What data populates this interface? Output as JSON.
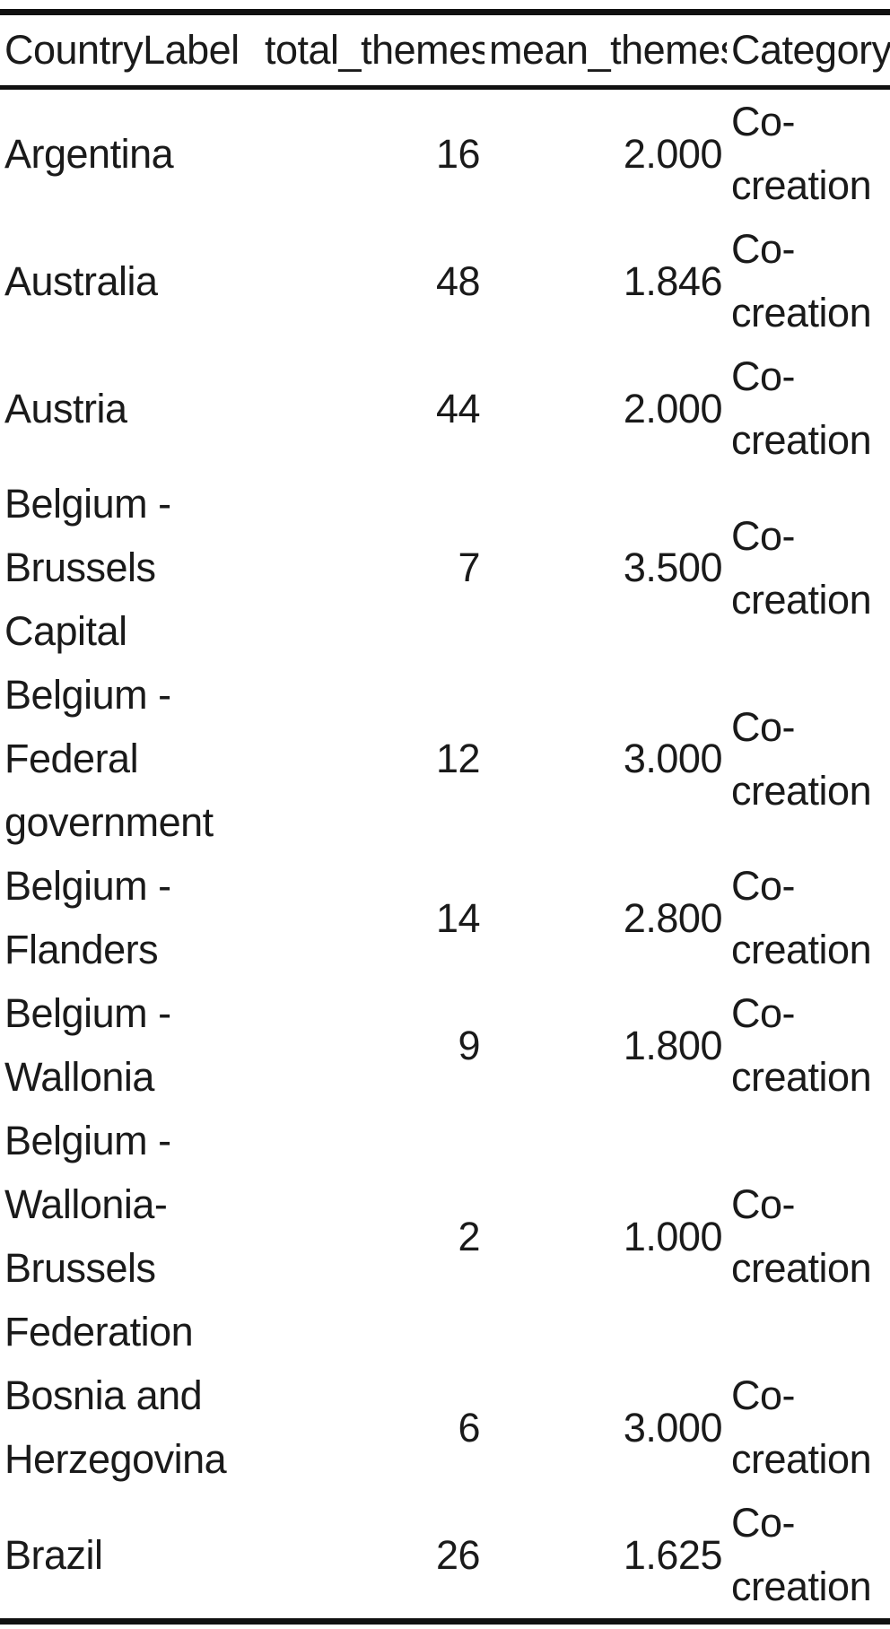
{
  "table": {
    "columns": [
      "CountryLabel",
      "total_themes",
      "mean_themes",
      "Category"
    ],
    "rows": [
      {
        "country": "Argentina",
        "total": "16",
        "mean": "2.000",
        "category": "Co-creation"
      },
      {
        "country": "Australia",
        "total": "48",
        "mean": "1.846",
        "category": "Co-creation"
      },
      {
        "country": "Austria",
        "total": "44",
        "mean": "2.000",
        "category": "Co-creation"
      },
      {
        "country": "Belgium - Brussels Capital",
        "total": "7",
        "mean": "3.500",
        "category": "Co-creation"
      },
      {
        "country": "Belgium - Federal government",
        "total": "12",
        "mean": "3.000",
        "category": "Co-creation"
      },
      {
        "country": "Belgium - Flanders",
        "total": "14",
        "mean": "2.800",
        "category": "Co-creation"
      },
      {
        "country": "Belgium - Wallonia",
        "total": "9",
        "mean": "1.800",
        "category": "Co-creation"
      },
      {
        "country": "Belgium - Wallonia-Brussels Federation",
        "total": "2",
        "mean": "1.000",
        "category": "Co-creation"
      },
      {
        "country": "Bosnia and Herzegovina",
        "total": "6",
        "mean": "3.000",
        "category": "Co-creation"
      },
      {
        "country": "Brazil",
        "total": "26",
        "mean": "1.625",
        "category": "Co-creation"
      }
    ]
  }
}
